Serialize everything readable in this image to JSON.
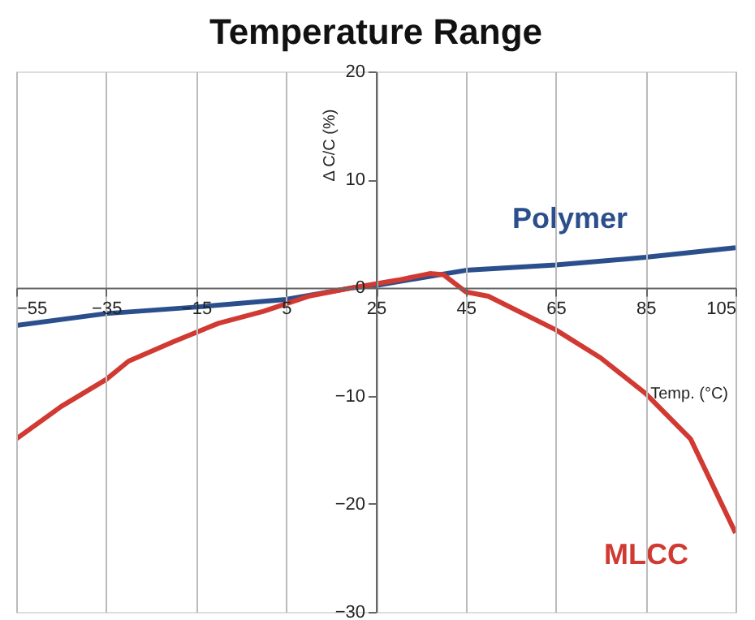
{
  "chart_data": {
    "type": "line",
    "title": "Temperature Range",
    "xlabel": "Temp. (°C)",
    "ylabel": "Δ C/C (%)",
    "xlim": [
      -55,
      105
    ],
    "xticks": [
      -55,
      -35,
      -15,
      5,
      25,
      45,
      65,
      85,
      105
    ],
    "ylim": [
      -30,
      20
    ],
    "yticks": [
      -30,
      -20,
      -10,
      0,
      10,
      20
    ],
    "grid": "x",
    "marker": "none",
    "line_style": "solid",
    "series": [
      {
        "name": "Polymer",
        "color": "#2b4f8c",
        "x": [
          -55,
          -35,
          -15,
          5,
          20,
          25,
          45,
          65,
          85,
          105
        ],
        "values": [
          -3.5,
          -2.4,
          -1.8,
          -1.1,
          0,
          0.2,
          1.6,
          2.1,
          2.8,
          3.7
        ]
      },
      {
        "name": "MLCC",
        "color": "#d03a32",
        "x": [
          -55,
          -45,
          -35,
          -30,
          -20,
          -10,
          0,
          10,
          20,
          30,
          37,
          40,
          45,
          50,
          65,
          75,
          85,
          95,
          105
        ],
        "values": [
          -14,
          -11,
          -8.5,
          -6.8,
          -5.0,
          -3.3,
          -2.2,
          -0.8,
          0,
          0.7,
          1.3,
          1.2,
          -0.4,
          -0.8,
          -3.9,
          -6.5,
          -9.8,
          -14,
          -22.7
        ]
      }
    ]
  }
}
